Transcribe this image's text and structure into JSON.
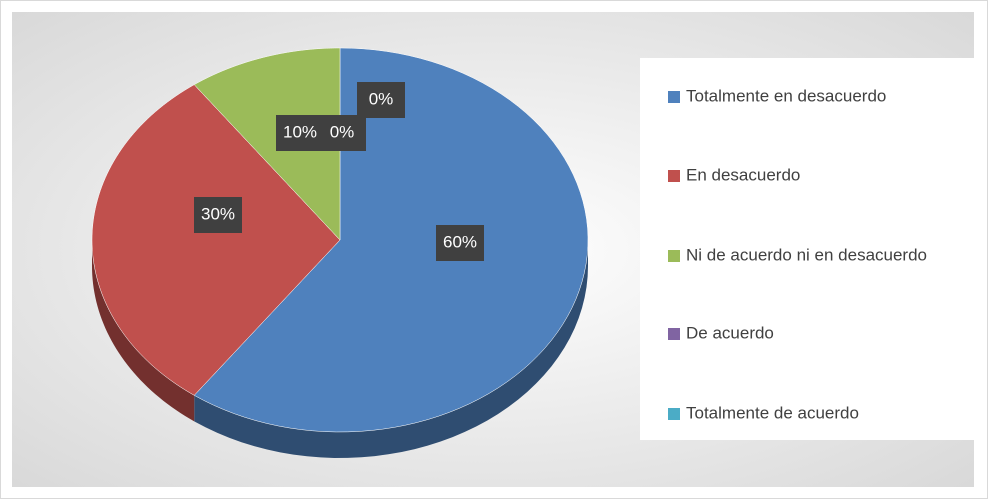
{
  "chart_data": {
    "type": "pie",
    "categories": [
      "Totalmente en desacuerdo",
      "En desacuerdo",
      "Ni de acuerdo ni en desacuerdo",
      "De acuerdo",
      "Totalmente de acuerdo"
    ],
    "values": [
      60,
      30,
      10,
      0,
      0
    ],
    "value_labels": [
      "60%",
      "30%",
      "10%",
      "0%",
      "0%"
    ],
    "colors": [
      "#4f81bd",
      "#c0504d",
      "#9bbb59",
      "#8064a2",
      "#4bacc6"
    ],
    "legend": "right"
  }
}
